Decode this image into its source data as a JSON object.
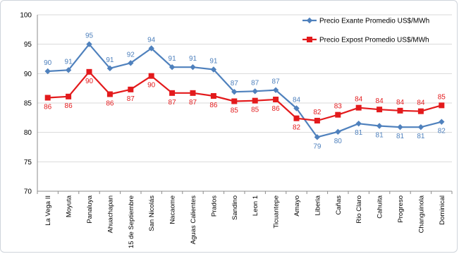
{
  "chart_data": {
    "type": "line",
    "categories": [
      "La Vega II",
      "Moyuta",
      "Panaluya",
      "Ahuachapan",
      "15 de Septiembre",
      "San Nicolás",
      "Nacaome",
      "Aguas Calientes",
      "Prados",
      "Sandino",
      "Leon 1",
      "Ticuantepe",
      "Amayo",
      "Liberia",
      "Cañas",
      "Rio Claro",
      "Cahuita",
      "Progreso",
      "Changuinola",
      "Dominical"
    ],
    "series": [
      {
        "name": "Precio Exante Promedio US$/MWh",
        "color": "#4f81bd",
        "marker": "diamond",
        "values": [
          90.4,
          90.6,
          95.0,
          90.9,
          91.8,
          94.3,
          91.1,
          91.1,
          90.7,
          86.9,
          87.0,
          87.2,
          84.1,
          79.2,
          80.1,
          81.5,
          81.1,
          80.9,
          80.9,
          81.8
        ],
        "labels": [
          "90",
          "91",
          "95",
          "91",
          "92",
          "94",
          "91",
          "91",
          "91",
          "87",
          "87",
          "87",
          "84",
          "79",
          "80",
          "81",
          "81",
          "81",
          "81",
          "82"
        ]
      },
      {
        "name": "Precio Expost Promedio US$/MWh",
        "color": "#e31a1c",
        "marker": "square",
        "values": [
          85.9,
          86.1,
          90.3,
          86.5,
          87.3,
          89.6,
          86.7,
          86.7,
          86.2,
          85.3,
          85.4,
          85.6,
          82.4,
          82.0,
          83.0,
          84.2,
          83.9,
          83.7,
          83.6,
          84.6
        ],
        "labels": [
          "86",
          "86",
          "90",
          "86",
          "87",
          "90",
          "87",
          "87",
          "86",
          "85",
          "85",
          "86",
          "82",
          "82",
          "83",
          "84",
          "84",
          "84",
          "84",
          "85"
        ]
      }
    ],
    "y_ticks": [
      "70",
      "75",
      "80",
      "85",
      "90",
      "95",
      "100"
    ],
    "ylim": [
      70,
      100
    ],
    "grid": "horizontal",
    "legend": "top-right"
  }
}
